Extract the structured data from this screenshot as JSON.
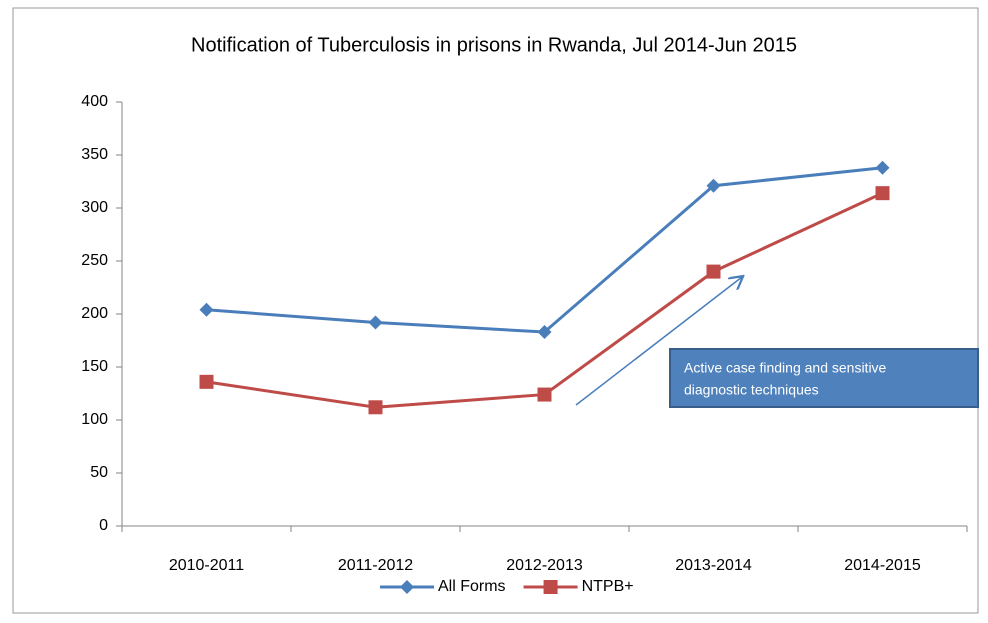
{
  "chart_data": {
    "type": "line",
    "title": "Notification of Tuberculosis in prisons in Rwanda, Jul 2014-Jun 2015",
    "categories": [
      "2010-2011",
      "2011-2012",
      "2012-2013",
      "2013-2014",
      "2014-2015"
    ],
    "series": [
      {
        "name": "All Forms",
        "color": "#4a7ebb",
        "marker": "diamond",
        "values": [
          204,
          192,
          183,
          321,
          338
        ]
      },
      {
        "name": "NTPB+",
        "color": "#be4b48",
        "marker": "square",
        "values": [
          136,
          112,
          124,
          240,
          314
        ]
      }
    ],
    "ylim": [
      0,
      400
    ],
    "yticks": [
      0,
      50,
      100,
      150,
      200,
      250,
      300,
      350,
      400
    ],
    "grid": false,
    "legend": "bottom",
    "annotation": [
      "Active case finding and sensitive",
      "diagnostic techniques"
    ]
  }
}
